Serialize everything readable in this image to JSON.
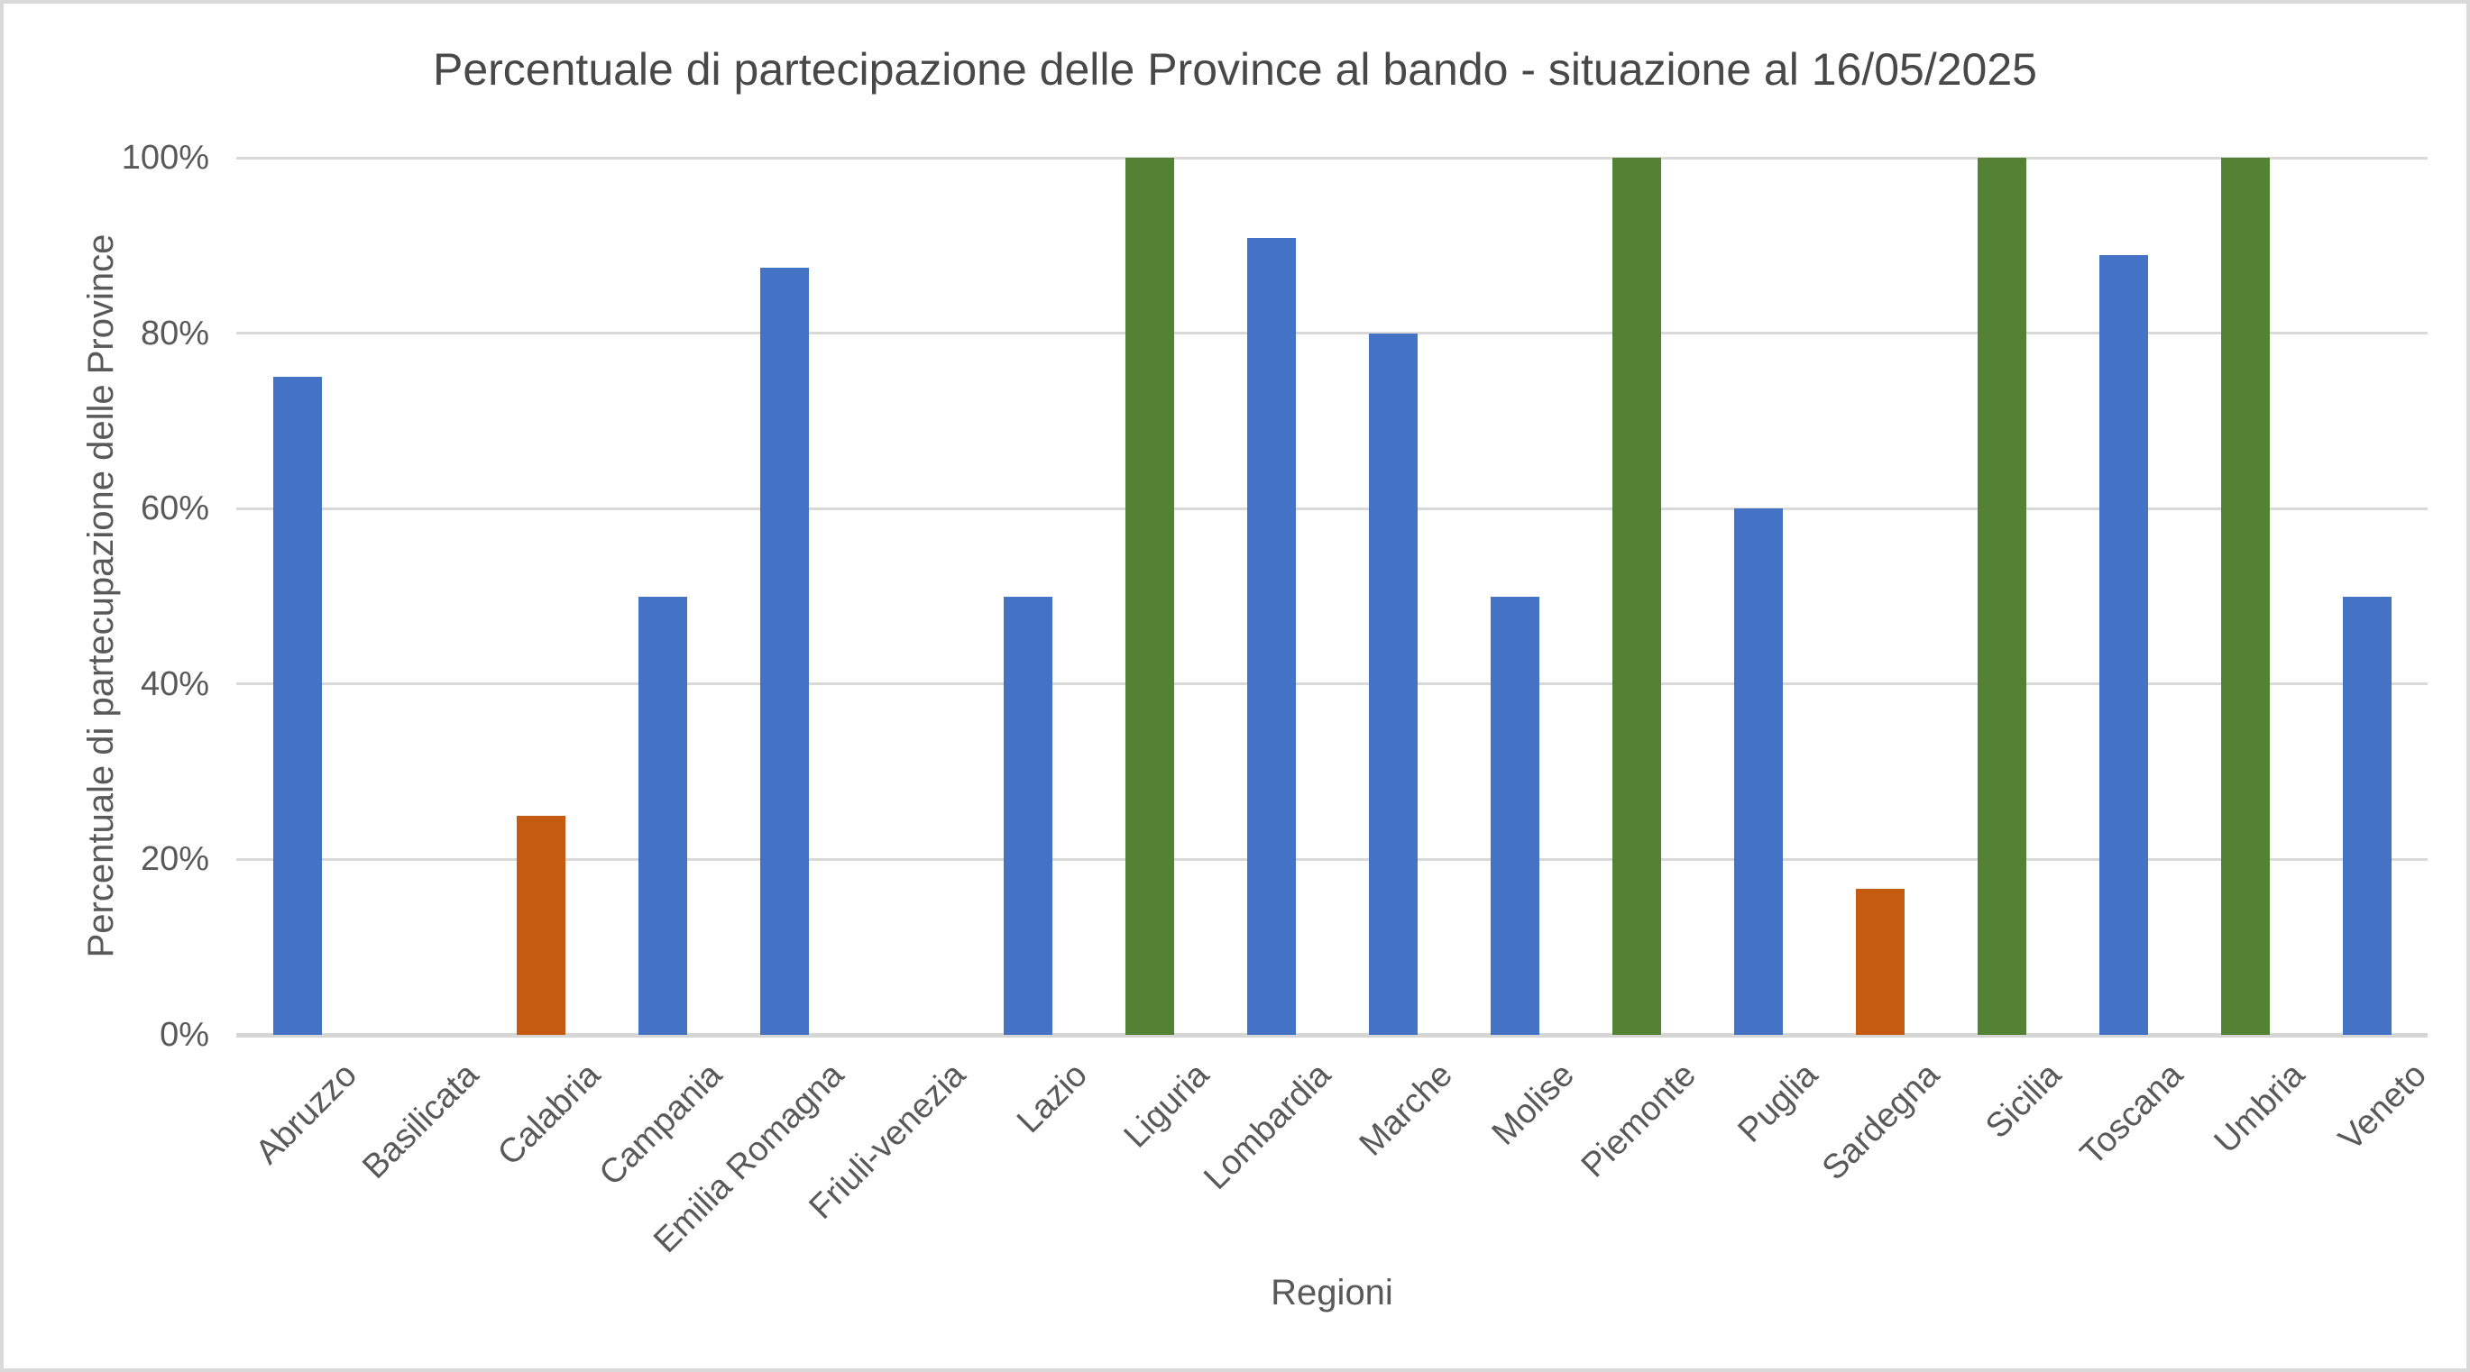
{
  "frame": {
    "background": "#FFFFFF",
    "border_color": "#D9D9D9"
  },
  "chart_data": {
    "type": "bar",
    "title": "Percentuale di partecipazione delle Province al bando - situazione al 16/05/2025",
    "xlabel": "Regioni",
    "ylabel": "Percentuale  di partecupazione delle Province",
    "categories": [
      "Abruzzo",
      "Basilicata",
      "Calabria",
      "Campania",
      "Emilia Romagna",
      "Friuli-venezia",
      "Lazio",
      "Liguria",
      "Lombardia",
      "Marche",
      "Molise",
      "Piemonte",
      "Puglia",
      "Sardegna",
      "Sicilia",
      "Toscana",
      "Umbria",
      "Veneto"
    ],
    "values": [
      75,
      0,
      25,
      50,
      87.5,
      0,
      50,
      100,
      90.9,
      80,
      50,
      100,
      60,
      16.7,
      100,
      88.9,
      100,
      50
    ],
    "bar_colors": [
      "#4472C4",
      null,
      "#C55A11",
      "#4472C4",
      "#4472C4",
      null,
      "#4472C4",
      "#548235",
      "#4472C4",
      "#4472C4",
      "#4472C4",
      "#548235",
      "#4472C4",
      "#C55A11",
      "#548235",
      "#4472C4",
      "#548235",
      "#4472C4"
    ],
    "y_ticks": [
      {
        "label": "0%",
        "value": 0
      },
      {
        "label": "20%",
        "value": 20
      },
      {
        "label": "40%",
        "value": 40
      },
      {
        "label": "60%",
        "value": 60
      },
      {
        "label": "80%",
        "value": 80
      },
      {
        "label": "100%",
        "value": 100
      }
    ],
    "ylim": [
      0,
      100
    ],
    "grid": "horizontal",
    "legend": "none",
    "palette": {
      "default_bar": "#4472C4",
      "complete_bar": "#548235",
      "low_bar": "#C55A11",
      "gridline": "#D9D9D9",
      "axis_text": "#595959",
      "title_text": "#484848"
    }
  }
}
